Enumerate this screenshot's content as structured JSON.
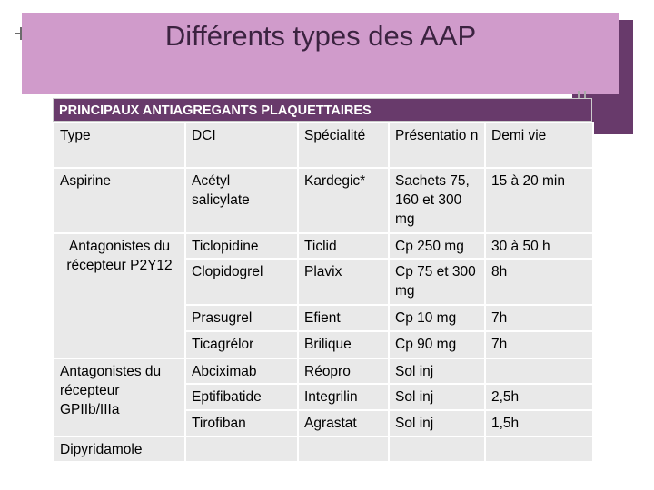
{
  "slide": {
    "title": "Différents types des AAP",
    "colors": {
      "title_bg": "#d09bcb",
      "accent": "#683a6b",
      "cell_bg": "#e9e9e9"
    }
  },
  "table": {
    "header": "PRINCIPAUX ANTIAGREGANTS PLAQUETTAIRES",
    "columns": [
      "Type",
      "DCI",
      "Spécialité",
      "Présentatio n",
      "Demi vie"
    ],
    "groups": {
      "aspirine": "Aspirine",
      "p2y12": "Antagonistes du récepteur P2Y12",
      "gp": "Antagonistes du récepteur GPIIb/IIIa",
      "dipyridamole": "Dipyridamole"
    },
    "rows": [
      {
        "dci": "Acétyl salicylate",
        "specialite": "Kardegic*",
        "presentation": "Sachets 75, 160 et 300 mg",
        "demi_vie": "15 à 20 min"
      },
      {
        "dci": "Ticlopidine",
        "specialite": "Ticlid",
        "presentation": "Cp 250 mg",
        "demi_vie": "30 à 50 h"
      },
      {
        "dci": "Clopidogrel",
        "specialite": "Plavix",
        "presentation": "Cp 75 et 300 mg",
        "demi_vie": "8h"
      },
      {
        "dci": "Prasugrel",
        "specialite": "Efient",
        "presentation": "Cp 10 mg",
        "demi_vie": "7h"
      },
      {
        "dci": "Ticagrélor",
        "specialite": "Brilique",
        "presentation": "Cp 90 mg",
        "demi_vie": "7h"
      },
      {
        "dci": "Abciximab",
        "specialite": "Réopro",
        "presentation": "Sol inj",
        "demi_vie": ""
      },
      {
        "dci": "Eptifibatide",
        "specialite": "Integrilin",
        "presentation": "Sol inj",
        "demi_vie": "2,5h"
      },
      {
        "dci": "Tirofiban",
        "specialite": "Agrastat",
        "presentation": "Sol inj",
        "demi_vie": "1,5h"
      },
      {
        "dci": "",
        "specialite": "",
        "presentation": "",
        "demi_vie": ""
      }
    ]
  }
}
